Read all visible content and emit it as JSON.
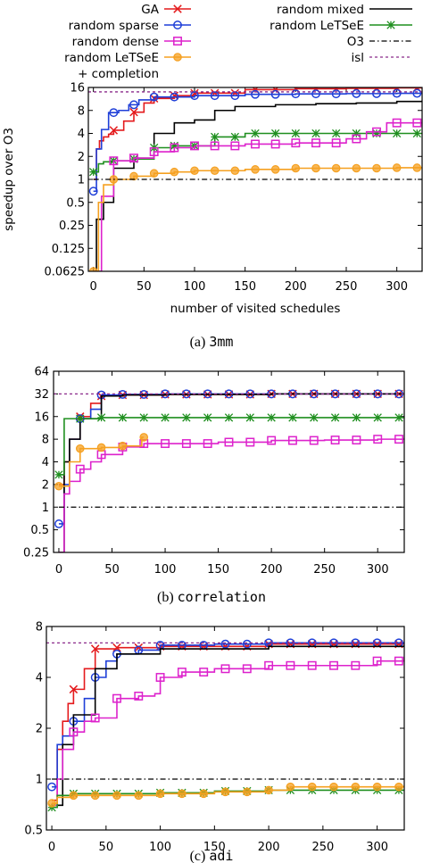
{
  "legend": {
    "entries": [
      {
        "label": "GA",
        "color": "#e41a1c",
        "marker": "x",
        "dash": ""
      },
      {
        "label": "random sparse",
        "color": "#1f3fd8",
        "marker": "circle",
        "dash": ""
      },
      {
        "label": "random dense",
        "color": "#dd22cc",
        "marker": "square",
        "dash": ""
      },
      {
        "label": "random LeTSeE",
        "label2": "+ completion",
        "color": "#f5a020",
        "marker": "dot",
        "dash": ""
      },
      {
        "label": "random mixed",
        "color": "#000000",
        "marker": "none",
        "dash": ""
      },
      {
        "label": "random LeTSeE",
        "color": "#1f8f1f",
        "marker": "star",
        "dash": ""
      },
      {
        "label": "O3",
        "color": "#000000",
        "marker": "none",
        "dash": "6,3,1.5,3"
      },
      {
        "label": "isl",
        "color": "#8b2a8b",
        "marker": "none",
        "dash": "3,3"
      }
    ]
  },
  "chart_data": [
    {
      "type": "line",
      "caption_prefix": "(a)",
      "caption_name": "3mm",
      "xlabel": "number of visited schedules",
      "ylabel": "speedup over O3",
      "xlim": [
        -5,
        325
      ],
      "ylim": [
        0.0625,
        16
      ],
      "yscale": "log2",
      "xticks": [
        0,
        50,
        100,
        150,
        200,
        250,
        300
      ],
      "yticks": [
        0.0625,
        0.125,
        0.25,
        0.5,
        1,
        2,
        4,
        8,
        16
      ],
      "ytick_labels": [
        "0.0625",
        "0.125",
        "0.25",
        "0.5",
        "1",
        "2",
        "4",
        "8",
        "16"
      ],
      "series": [
        {
          "name": "GA",
          "x": [
            0,
            3,
            6,
            10,
            15,
            20,
            30,
            40,
            50,
            60,
            80,
            100,
            150,
            200,
            250,
            300,
            325
          ],
          "y": [
            1,
            2.5,
            3.2,
            3.6,
            3.9,
            4.4,
            5.8,
            7.6,
            10,
            11.5,
            12.5,
            13.5,
            15,
            15.4,
            15.6,
            15.8,
            15.8
          ],
          "markers_x": [
            20,
            40,
            60,
            80,
            100,
            120,
            140,
            160,
            180,
            200,
            220,
            240,
            260,
            280,
            300,
            320
          ]
        },
        {
          "name": "random sparse",
          "x": [
            0,
            3,
            8,
            15,
            25,
            35,
            45,
            60,
            100,
            150,
            200,
            250,
            300,
            325
          ],
          "y": [
            0.7,
            2.5,
            4.5,
            7.5,
            8,
            9.5,
            11,
            12,
            12.5,
            13,
            13.2,
            13.3,
            13.4,
            13.4
          ],
          "markers_x": [
            0,
            20,
            40,
            60,
            80,
            100,
            120,
            140,
            160,
            180,
            200,
            220,
            240,
            260,
            280,
            300,
            320
          ]
        },
        {
          "name": "random mixed",
          "x": [
            0,
            3,
            10,
            20,
            40,
            60,
            80,
            100,
            120,
            140,
            180,
            220,
            260,
            300,
            325
          ],
          "y": [
            0.0625,
            0.3,
            0.5,
            1.4,
            1.9,
            4,
            5.5,
            6,
            8,
            9,
            9.5,
            9.8,
            10,
            10.5,
            10.8
          ]
        },
        {
          "name": "random LeTSeE",
          "x": [
            0,
            5,
            10,
            20,
            40,
            60,
            80,
            100,
            120,
            150,
            200,
            250,
            300,
            325
          ],
          "y": [
            1.25,
            1.6,
            1.7,
            1.75,
            1.85,
            2.6,
            2.75,
            2.75,
            3.6,
            4,
            4,
            4,
            4,
            4
          ],
          "markers_x": [
            0,
            20,
            40,
            60,
            80,
            100,
            120,
            140,
            160,
            180,
            200,
            220,
            240,
            260,
            280,
            300,
            320
          ]
        },
        {
          "name": "random dense",
          "x": [
            0,
            8,
            20,
            40,
            60,
            80,
            100,
            150,
            200,
            250,
            270,
            290,
            325
          ],
          "y": [
            0.0625,
            0.6,
            1.75,
            1.9,
            2.3,
            2.6,
            2.75,
            2.9,
            3,
            3.4,
            4.2,
            5.5,
            5.5
          ],
          "markers_x": [
            20,
            40,
            60,
            80,
            100,
            120,
            140,
            160,
            180,
            200,
            220,
            240,
            260,
            280,
            300,
            320
          ]
        },
        {
          "name": "random LeTSeE + completion",
          "x": [
            0,
            5,
            10,
            20,
            40,
            60,
            80,
            100,
            150,
            200,
            250,
            300,
            325
          ],
          "y": [
            0.0625,
            0.5,
            0.85,
            1,
            1.1,
            1.2,
            1.25,
            1.3,
            1.35,
            1.4,
            1.4,
            1.42,
            1.42
          ],
          "markers_x": [
            0,
            20,
            40,
            60,
            80,
            100,
            120,
            140,
            160,
            180,
            200,
            220,
            240,
            260,
            280,
            300,
            320
          ]
        },
        {
          "name": "O3",
          "x": [
            0,
            325
          ],
          "y": [
            1,
            1
          ]
        },
        {
          "name": "isl",
          "x": [
            -5,
            325
          ],
          "y": [
            14,
            14
          ]
        }
      ]
    },
    {
      "type": "line",
      "caption_prefix": "(b)",
      "caption_name": "correlation",
      "xlabel": "",
      "ylabel": "",
      "xlim": [
        -5,
        325
      ],
      "ylim": [
        0.25,
        64
      ],
      "yscale": "log2",
      "xticks": [
        0,
        50,
        100,
        150,
        200,
        250,
        300
      ],
      "yticks": [
        0.25,
        0.5,
        1,
        2,
        4,
        8,
        16,
        32,
        64
      ],
      "ytick_labels": [
        "0.25",
        "0.5",
        "1",
        "2",
        "4",
        "8",
        "16",
        "32",
        "64"
      ],
      "series": [
        {
          "name": "GA",
          "x": [
            0,
            5,
            10,
            20,
            30,
            40,
            60,
            100,
            200,
            325
          ],
          "y": [
            2,
            4,
            8,
            16,
            24,
            30,
            31,
            31.5,
            32,
            32
          ],
          "markers_x": [
            20,
            40,
            60,
            80,
            100,
            120,
            140,
            160,
            180,
            200,
            220,
            240,
            260,
            280,
            300,
            320
          ]
        },
        {
          "name": "random sparse",
          "x": [
            0,
            5,
            10,
            20,
            30,
            40,
            60,
            100,
            200,
            325
          ],
          "y": [
            0.6,
            2,
            8,
            15,
            20,
            31,
            31.5,
            32,
            32,
            32
          ],
          "markers_x": [
            0,
            20,
            40,
            60,
            80,
            100,
            120,
            140,
            160,
            180,
            200,
            220,
            240,
            260,
            280,
            300,
            320
          ]
        },
        {
          "name": "random mixed",
          "x": [
            0,
            5,
            10,
            20,
            40,
            60,
            100,
            200,
            325
          ],
          "y": [
            0.25,
            4,
            8,
            15,
            30,
            31,
            31.5,
            32,
            32
          ]
        },
        {
          "name": "random LeTSeE",
          "x": [
            0,
            5,
            20,
            40,
            325
          ],
          "y": [
            2.7,
            15,
            15,
            15.5,
            15.5
          ],
          "markers_x": [
            0,
            20,
            40,
            60,
            80,
            100,
            120,
            140,
            160,
            180,
            200,
            220,
            240,
            260,
            280,
            300,
            320
          ]
        },
        {
          "name": "random dense",
          "x": [
            0,
            5,
            10,
            20,
            30,
            40,
            60,
            80,
            100,
            150,
            200,
            250,
            300,
            325
          ],
          "y": [
            0.25,
            1.5,
            2.2,
            3.2,
            4,
            5,
            6.3,
            7,
            7,
            7.3,
            7.7,
            7.8,
            8,
            8.3
          ],
          "markers_x": [
            20,
            40,
            60,
            80,
            100,
            120,
            140,
            160,
            180,
            200,
            220,
            240,
            260,
            280,
            300,
            320
          ]
        },
        {
          "name": "random LeTSeE + completion",
          "x": [
            0,
            10,
            20,
            40,
            60,
            78,
            80
          ],
          "y": [
            1.9,
            4,
            6,
            6.2,
            6.5,
            8.5,
            8.5
          ],
          "markers_x": [
            0,
            20,
            40,
            60,
            80
          ]
        },
        {
          "name": "O3",
          "x": [
            0,
            325
          ],
          "y": [
            1,
            1
          ]
        },
        {
          "name": "isl",
          "x": [
            -5,
            325
          ],
          "y": [
            32,
            32
          ]
        }
      ]
    },
    {
      "type": "line",
      "caption_prefix": "(c)",
      "caption_name": "adi",
      "xlabel": "",
      "ylabel": "",
      "xlim": [
        -5,
        325
      ],
      "ylim": [
        0.5,
        8
      ],
      "yscale": "log2",
      "xticks": [
        0,
        50,
        100,
        150,
        200,
        250,
        300
      ],
      "yticks": [
        0.5,
        1,
        2,
        4,
        8
      ],
      "ytick_labels": [
        "0.5",
        "1",
        "2",
        "4",
        "8"
      ],
      "series": [
        {
          "name": "GA",
          "x": [
            0,
            5,
            10,
            15,
            20,
            30,
            40,
            60,
            100,
            200,
            325
          ],
          "y": [
            0.75,
            1.5,
            2.2,
            2.8,
            3.4,
            4.5,
            5.9,
            6,
            6.1,
            6.3,
            6.5
          ],
          "markers_x": [
            20,
            40,
            60,
            80,
            100,
            120,
            140,
            160,
            180,
            200,
            220,
            240,
            260,
            280,
            300,
            320
          ]
        },
        {
          "name": "random sparse",
          "x": [
            0,
            5,
            10,
            20,
            30,
            40,
            50,
            60,
            80,
            100,
            150,
            200,
            300,
            325
          ],
          "y": [
            0.9,
            1.6,
            1.8,
            2.2,
            3,
            4,
            5,
            5.5,
            5.8,
            6.2,
            6.3,
            6.4,
            6.4,
            6.3
          ],
          "markers_x": [
            0,
            20,
            40,
            60,
            80,
            100,
            120,
            140,
            160,
            180,
            200,
            220,
            240,
            260,
            280,
            300,
            320
          ]
        },
        {
          "name": "random mixed",
          "x": [
            0,
            10,
            20,
            40,
            60,
            100,
            200,
            325
          ],
          "y": [
            0.7,
            1.6,
            2.4,
            4.5,
            5.5,
            5.9,
            6.1,
            6.2
          ]
        },
        {
          "name": "random dense",
          "x": [
            0,
            5,
            10,
            20,
            30,
            40,
            60,
            80,
            95,
            100,
            120,
            150,
            200,
            300,
            325
          ],
          "y": [
            0.7,
            1,
            1.5,
            1.9,
            2.2,
            2.3,
            3,
            3.1,
            3.2,
            4,
            4.3,
            4.5,
            4.7,
            5,
            5.3
          ],
          "markers_x": [
            20,
            40,
            60,
            80,
            100,
            120,
            140,
            160,
            180,
            200,
            220,
            240,
            260,
            280,
            300,
            320
          ]
        },
        {
          "name": "random LeTSeE",
          "x": [
            0,
            5,
            20,
            100,
            150,
            200,
            325
          ],
          "y": [
            0.68,
            0.8,
            0.82,
            0.83,
            0.85,
            0.86,
            0.86
          ],
          "markers_x": [
            0,
            20,
            40,
            60,
            80,
            100,
            120,
            140,
            160,
            180,
            200,
            220,
            240,
            260,
            280,
            300,
            320
          ]
        },
        {
          "name": "random LeTSeE + completion",
          "x": [
            0,
            5,
            20,
            100,
            150,
            200,
            220,
            325
          ],
          "y": [
            0.72,
            0.78,
            0.8,
            0.82,
            0.84,
            0.86,
            0.9,
            0.92
          ],
          "markers_x": [
            0,
            20,
            40,
            60,
            80,
            100,
            120,
            140,
            160,
            180,
            200,
            220,
            240,
            260,
            280,
            300,
            320
          ]
        },
        {
          "name": "O3",
          "x": [
            0,
            325
          ],
          "y": [
            1,
            1
          ]
        },
        {
          "name": "isl",
          "x": [
            -5,
            325
          ],
          "y": [
            6.4,
            6.4
          ]
        }
      ]
    }
  ]
}
